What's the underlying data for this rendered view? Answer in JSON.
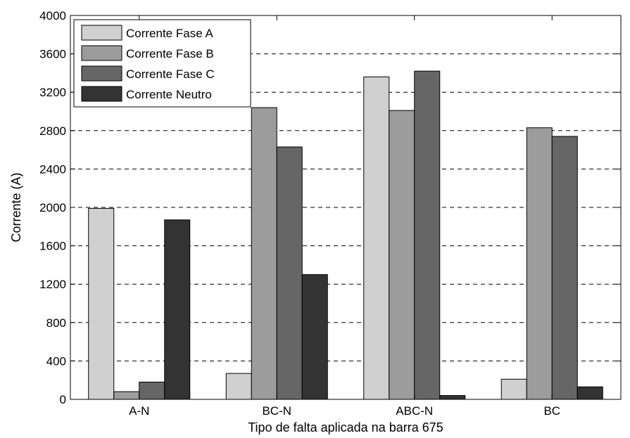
{
  "chart_data": {
    "type": "bar",
    "title": "",
    "xlabel": "Tipo de falta aplicada na barra 675",
    "ylabel": "Corrente (A)",
    "categories": [
      "A-N",
      "BC-N",
      "ABC-N",
      "BC"
    ],
    "ylim": [
      0,
      4000
    ],
    "yticks": [
      0,
      400,
      800,
      1200,
      1600,
      2000,
      2400,
      2800,
      3200,
      3600,
      4000
    ],
    "grid": "horizontal-dashed",
    "legend_position": "top-left",
    "series": [
      {
        "name": "Corrente Fase A",
        "color": "#d0d0d0",
        "values": [
          1990,
          270,
          3360,
          210
        ]
      },
      {
        "name": "Corrente Fase B",
        "color": "#9c9c9c",
        "values": [
          80,
          3040,
          3010,
          2830
        ]
      },
      {
        "name": "Corrente Fase C",
        "color": "#666666",
        "values": [
          180,
          2630,
          3420,
          2740
        ]
      },
      {
        "name": "Corrente Neutro",
        "color": "#333333",
        "values": [
          1870,
          1300,
          40,
          130
        ]
      }
    ]
  }
}
